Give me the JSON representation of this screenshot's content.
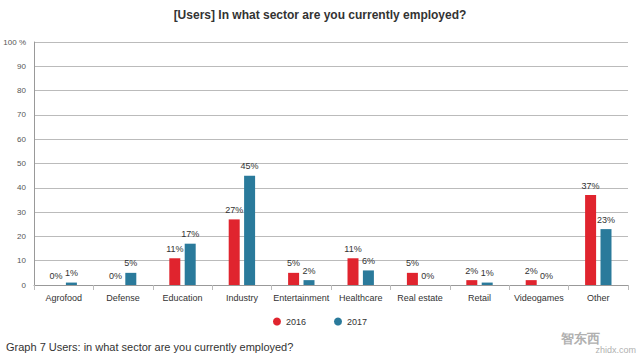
{
  "chart_data": {
    "type": "bar",
    "title": "[Users] In what sector are you currently employed?",
    "categories": [
      "Agrofood",
      "Defense",
      "Education",
      "Industry",
      "Entertainment",
      "Healthcare",
      "Real estate",
      "Retail",
      "Videogames",
      "Other"
    ],
    "series": [
      {
        "name": "2016",
        "color": "#e0242e",
        "values": [
          0,
          0,
          11,
          27,
          5,
          11,
          5,
          2,
          2,
          37
        ],
        "value_labels": [
          "0%",
          "0%",
          "11%",
          "27%",
          "5%",
          "11%",
          "5%",
          "2%",
          "2%",
          "37%"
        ]
      },
      {
        "name": "2017",
        "color": "#2a7a9b",
        "values": [
          1,
          5,
          17,
          45,
          2,
          6,
          0,
          1,
          0,
          23
        ],
        "value_labels": [
          "1%",
          "5%",
          "17%",
          "45%",
          "2%",
          "6%",
          "0%",
          "1%",
          "0%",
          "23%"
        ]
      }
    ],
    "ylim": [
      0,
      100
    ],
    "yticks": [
      0,
      10,
      20,
      30,
      40,
      50,
      60,
      70,
      80,
      90,
      {
        "value": 100,
        "label": "100 %"
      }
    ],
    "grid": true,
    "legend": "bottom",
    "data_labels": true,
    "annotations": [
      "Graph 7 Users: in what sector are you currently employed?",
      "智东西",
      "zhidx.com"
    ]
  }
}
